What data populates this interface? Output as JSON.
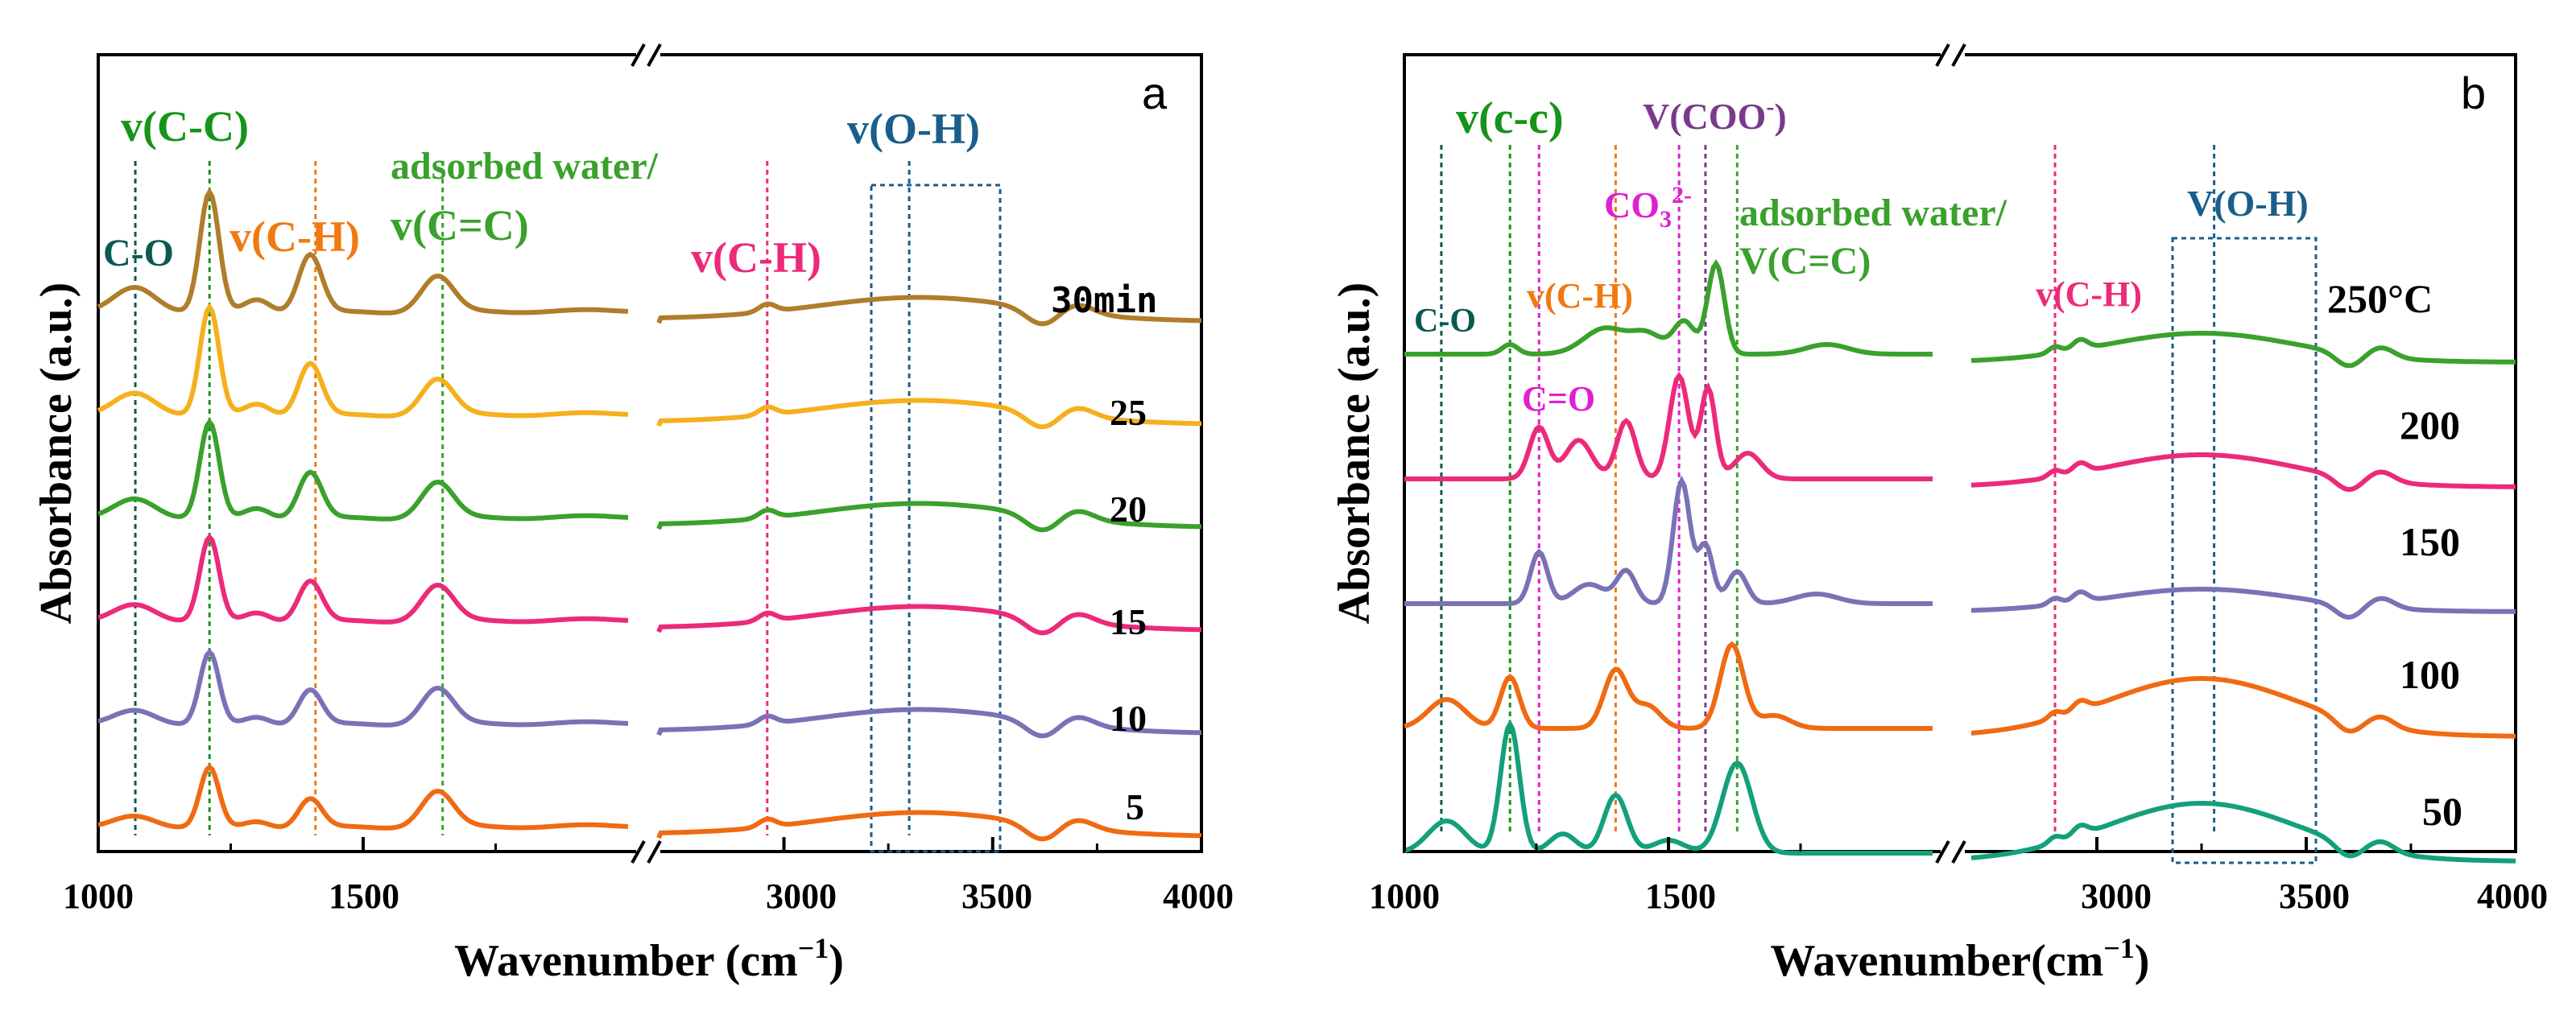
{
  "chart_data": [
    {
      "type": "line",
      "panel": "a",
      "xlabel": "Wavenumber (cm⁻¹)",
      "ylabel": "Absorbance (a.u.)",
      "xlim": [
        1000,
        4000
      ],
      "axis_break": [
        2000,
        2700
      ],
      "xticks": [
        1000,
        1500,
        3000,
        3500,
        4000
      ],
      "series": [
        {
          "name": "30min",
          "color": "#b07d2b",
          "offset": 5
        },
        {
          "name": "25",
          "color": "#f5b01e",
          "offset": 4
        },
        {
          "name": "20",
          "color": "#3aa12c",
          "offset": 3
        },
        {
          "name": "15",
          "color": "#ec2a7a",
          "offset": 2
        },
        {
          "name": "10",
          "color": "#7a72b6",
          "offset": 1
        },
        {
          "name": "5",
          "color": "#f06a12",
          "offset": 0
        }
      ],
      "annotations": [
        {
          "text": "C-O",
          "x": 1070,
          "color": "#0a5a52"
        },
        {
          "text": "v(C-C)",
          "x": 1210,
          "color": "#17941a"
        },
        {
          "text": "v(C-H)",
          "x": 1410,
          "color": "#f07a10"
        },
        {
          "text": "adsorbed water/",
          "x": 1650,
          "color": "#3aa12c"
        },
        {
          "text": "v(C=C)",
          "x": 1650,
          "color": "#3aa12c"
        },
        {
          "text": "v(C-H)",
          "x": 2960,
          "color": "#ec2a7a"
        },
        {
          "text": "v(O-H)",
          "x": 3300,
          "color": "#1a5e8c"
        }
      ],
      "oh_box": [
        3150,
        3500
      ],
      "panel_letter": "a"
    },
    {
      "type": "line",
      "panel": "b",
      "xlabel": "Wavenumber(cm⁻¹)",
      "ylabel": "Absorbance (a.u.)",
      "xlim": [
        1000,
        4000
      ],
      "axis_break": [
        2000,
        2700
      ],
      "xticks": [
        1000,
        1500,
        3000,
        3500,
        4000
      ],
      "series": [
        {
          "name": "250°C",
          "color": "#3aa12c",
          "offset": 4
        },
        {
          "name": "200",
          "color": "#ec2a7a",
          "offset": 3
        },
        {
          "name": "150",
          "color": "#7a72b6",
          "offset": 2
        },
        {
          "name": "100",
          "color": "#f06a12",
          "offset": 1
        },
        {
          "name": "50",
          "color": "#13a07a",
          "offset": 0
        }
      ],
      "annotations": [
        {
          "text": "C-O",
          "x": 1070,
          "color": "#0a5a52"
        },
        {
          "text": "v(c-c)",
          "x": 1200,
          "color": "#17941a"
        },
        {
          "text": "v(C-H)",
          "x": 1400,
          "color": "#f07a10"
        },
        {
          "text": "C=O",
          "x": 1255,
          "color": "#e020d0"
        },
        {
          "text": "CO3 2-",
          "x": 1520,
          "color": "#e020d0"
        },
        {
          "text": "V(COO-)",
          "x": 1570,
          "color": "#7a3a8c"
        },
        {
          "text": "adsorbed water/",
          "x": 1630,
          "color": "#3aa12c"
        },
        {
          "text": "V(C=C)",
          "x": 1630,
          "color": "#3aa12c"
        },
        {
          "text": "v(C-H)",
          "x": 2900,
          "color": "#ec2a7a"
        },
        {
          "text": "V(O-H)",
          "x": 3280,
          "color": "#1a5e8c"
        }
      ],
      "oh_box": [
        3100,
        3480
      ],
      "panel_letter": "b"
    }
  ],
  "text": {
    "a_title_letter": "a",
    "a_xlabel": "Wavenumber (cm",
    "a_xlabel_sup": "−1",
    "a_xlabel_end": ")",
    "a_ylabel": "Absorbance (a.u.)",
    "a_ticks": [
      "1000",
      "1500",
      "3000",
      "3500",
      "4000"
    ],
    "a_labels": [
      "30min",
      "25",
      "20",
      "15",
      "10",
      "5"
    ],
    "a_ann_co": "C-O",
    "a_ann_cc": "v(C-C)",
    "a_ann_ch": "v(C-H)",
    "a_ann_water": "adsorbed water/",
    "a_ann_cdc": "v(C=C)",
    "a_ann_ch2": "v(C-H)",
    "a_ann_oh": "v(O-H)",
    "b_title_letter": "b",
    "b_xlabel": "Wavenumber(cm",
    "b_xlabel_sup": "−1",
    "b_xlabel_end": ")",
    "b_ylabel": "Absorbance (a.u.)",
    "b_ticks": [
      "1000",
      "1500",
      "3000",
      "3500",
      "4000"
    ],
    "b_labels": [
      "250°C",
      "200",
      "150",
      "100",
      "50"
    ],
    "b_ann_co": "C-O",
    "b_ann_cc": "v(c-c)",
    "b_ann_ch": "v(C-H)",
    "b_ann_cdo": "C=O",
    "b_ann_co3": "CO",
    "b_ann_co3_sub": "3",
    "b_ann_co3_sup": "2-",
    "b_ann_coo": "V(COO",
    "b_ann_coo_sup": "-",
    "b_ann_coo_end": ")",
    "b_ann_water": "adsorbed water/",
    "b_ann_cdc": "V(C=C)",
    "b_ann_ch2": "v(C-H)",
    "b_ann_oh": "V(O-H)"
  }
}
